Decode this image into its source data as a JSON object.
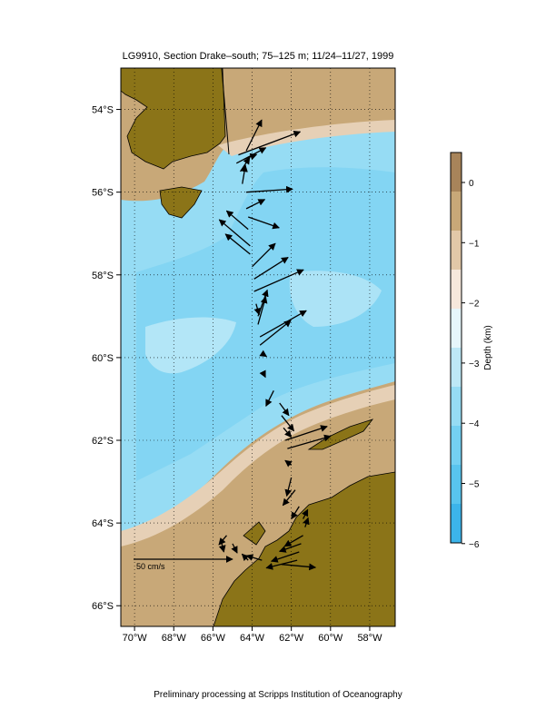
{
  "title": "LG9910, Section Drake–south; 75–125 m; 11/24–11/27, 1999",
  "footer": "Preliminary processing at Scripps Institution of Oceanography",
  "map": {
    "lon_range": [
      -70.7,
      -56.7
    ],
    "lat_range": [
      -53.0,
      -66.5
    ],
    "lon_ticks": [
      {
        "value": -70,
        "label": "70°W"
      },
      {
        "value": -68,
        "label": "68°W"
      },
      {
        "value": -66,
        "label": "66°W"
      },
      {
        "value": -64,
        "label": "64°W"
      },
      {
        "value": -62,
        "label": "62°W"
      },
      {
        "value": -60,
        "label": "60°W"
      },
      {
        "value": -58,
        "label": "58°W"
      }
    ],
    "lat_ticks": [
      {
        "value": -54,
        "label": "54°S"
      },
      {
        "value": -56,
        "label": "56°S"
      },
      {
        "value": -58,
        "label": "58°S"
      },
      {
        "value": -60,
        "label": "60°S"
      },
      {
        "value": -62,
        "label": "62°S"
      },
      {
        "value": -64,
        "label": "64°S"
      },
      {
        "value": -66,
        "label": "66°S"
      }
    ],
    "scale_arrow_label": "50 cm/s",
    "scale_label_color": "#e000e0",
    "colors": {
      "land": "#8b7418",
      "shelf": "#c8a878",
      "slope": "#e6d0b6",
      "deep_light": "#c8ecf8",
      "deep_mid": "#96dcf4",
      "deep_dark": "#5cc8f0"
    }
  },
  "colorbar": {
    "label": "Depth (km)",
    "ticks": [
      "0",
      "−1",
      "−2",
      "−3",
      "−4",
      "−5",
      "−6"
    ],
    "colors": [
      "#a8845a",
      "#c8a878",
      "#e2c8a8",
      "#f6e8dc",
      "#e6f6fb",
      "#bde8f6",
      "#96dcf4",
      "#74d0f2",
      "#58c4ee",
      "#3cb4ea"
    ]
  },
  "vectors": [
    {
      "lon": -64.8,
      "lat": -55.3,
      "u": 19,
      "v": 10
    },
    {
      "lon": -64.7,
      "lat": -55.1,
      "u": 40,
      "v": 15
    },
    {
      "lon": -64.6,
      "lat": -55.5,
      "u": 6,
      "v": 9
    },
    {
      "lon": -64.5,
      "lat": -55.8,
      "u": 2,
      "v": 12
    },
    {
      "lon": -64.4,
      "lat": -55.2,
      "u": 8,
      "v": 3
    },
    {
      "lon": -64.3,
      "lat": -56.0,
      "u": 30,
      "v": 2
    },
    {
      "lon": -64.3,
      "lat": -56.4,
      "u": 12,
      "v": 6
    },
    {
      "lon": -64.3,
      "lat": -55.0,
      "u": 10,
      "v": 20
    },
    {
      "lon": -64.2,
      "lat": -56.6,
      "u": 20,
      "v": -7
    },
    {
      "lon": -64.2,
      "lat": -56.9,
      "u": -14,
      "v": 12
    },
    {
      "lon": -64.1,
      "lat": -57.3,
      "u": -20,
      "v": 17
    },
    {
      "lon": -64.1,
      "lat": -57.5,
      "u": -16,
      "v": 13
    },
    {
      "lon": -64.0,
      "lat": -57.8,
      "u": 15,
      "v": 15
    },
    {
      "lon": -63.9,
      "lat": -58.1,
      "u": 22,
      "v": 14
    },
    {
      "lon": -63.9,
      "lat": -58.4,
      "u": 32,
      "v": 14
    },
    {
      "lon": -63.8,
      "lat": -58.7,
      "u": 2,
      "v": -7
    },
    {
      "lon": -63.7,
      "lat": -59.0,
      "u": 6,
      "v": 17
    },
    {
      "lon": -63.7,
      "lat": -59.2,
      "u": 5,
      "v": 18
    },
    {
      "lon": -63.6,
      "lat": -59.5,
      "u": 30,
      "v": 17
    },
    {
      "lon": -63.6,
      "lat": -59.7,
      "u": 20,
      "v": 16
    },
    {
      "lon": -63.5,
      "lat": -59.9,
      "u": 3,
      "v": -2
    },
    {
      "lon": -63.4,
      "lat": -60.4,
      "u": 1,
      "v": -2
    },
    {
      "lon": -62.9,
      "lat": -60.8,
      "u": -5,
      "v": -10
    },
    {
      "lon": -62.6,
      "lat": -61.1,
      "u": 6,
      "v": -8
    },
    {
      "lon": -62.5,
      "lat": -61.4,
      "u": 8,
      "v": -10
    },
    {
      "lon": -62.4,
      "lat": -61.7,
      "u": 5,
      "v": -6
    },
    {
      "lon": -62.3,
      "lat": -62.0,
      "u": 27,
      "v": 9
    },
    {
      "lon": -62.2,
      "lat": -62.2,
      "u": 28,
      "v": 8
    },
    {
      "lon": -62.0,
      "lat": -62.6,
      "u": -4,
      "v": 3
    },
    {
      "lon": -62.0,
      "lat": -62.9,
      "u": -3,
      "v": -12
    },
    {
      "lon": -61.8,
      "lat": -63.2,
      "u": -8,
      "v": -10
    },
    {
      "lon": -61.6,
      "lat": -63.6,
      "u": -5,
      "v": -8
    },
    {
      "lon": -61.4,
      "lat": -63.9,
      "u": 3,
      "v": 6
    },
    {
      "lon": -61.3,
      "lat": -64.1,
      "u": 2,
      "v": 6
    },
    {
      "lon": -61.4,
      "lat": -64.3,
      "u": -12,
      "v": -7
    },
    {
      "lon": -61.5,
      "lat": -64.5,
      "u": -14,
      "v": -5
    },
    {
      "lon": -61.6,
      "lat": -64.7,
      "u": -18,
      "v": -6
    },
    {
      "lon": -61.7,
      "lat": -64.9,
      "u": -20,
      "v": -5
    },
    {
      "lon": -62.5,
      "lat": -65.0,
      "u": 22,
      "v": -2
    },
    {
      "lon": -63.5,
      "lat": -64.9,
      "u": -10,
      "v": 3
    },
    {
      "lon": -64.2,
      "lat": -64.9,
      "u": -4,
      "v": 4
    },
    {
      "lon": -65.0,
      "lat": -64.5,
      "u": 3,
      "v": -6
    },
    {
      "lon": -65.3,
      "lat": -64.3,
      "u": -5,
      "v": -6
    },
    {
      "lon": -65.6,
      "lat": -64.4,
      "u": 2,
      "v": -8
    }
  ]
}
